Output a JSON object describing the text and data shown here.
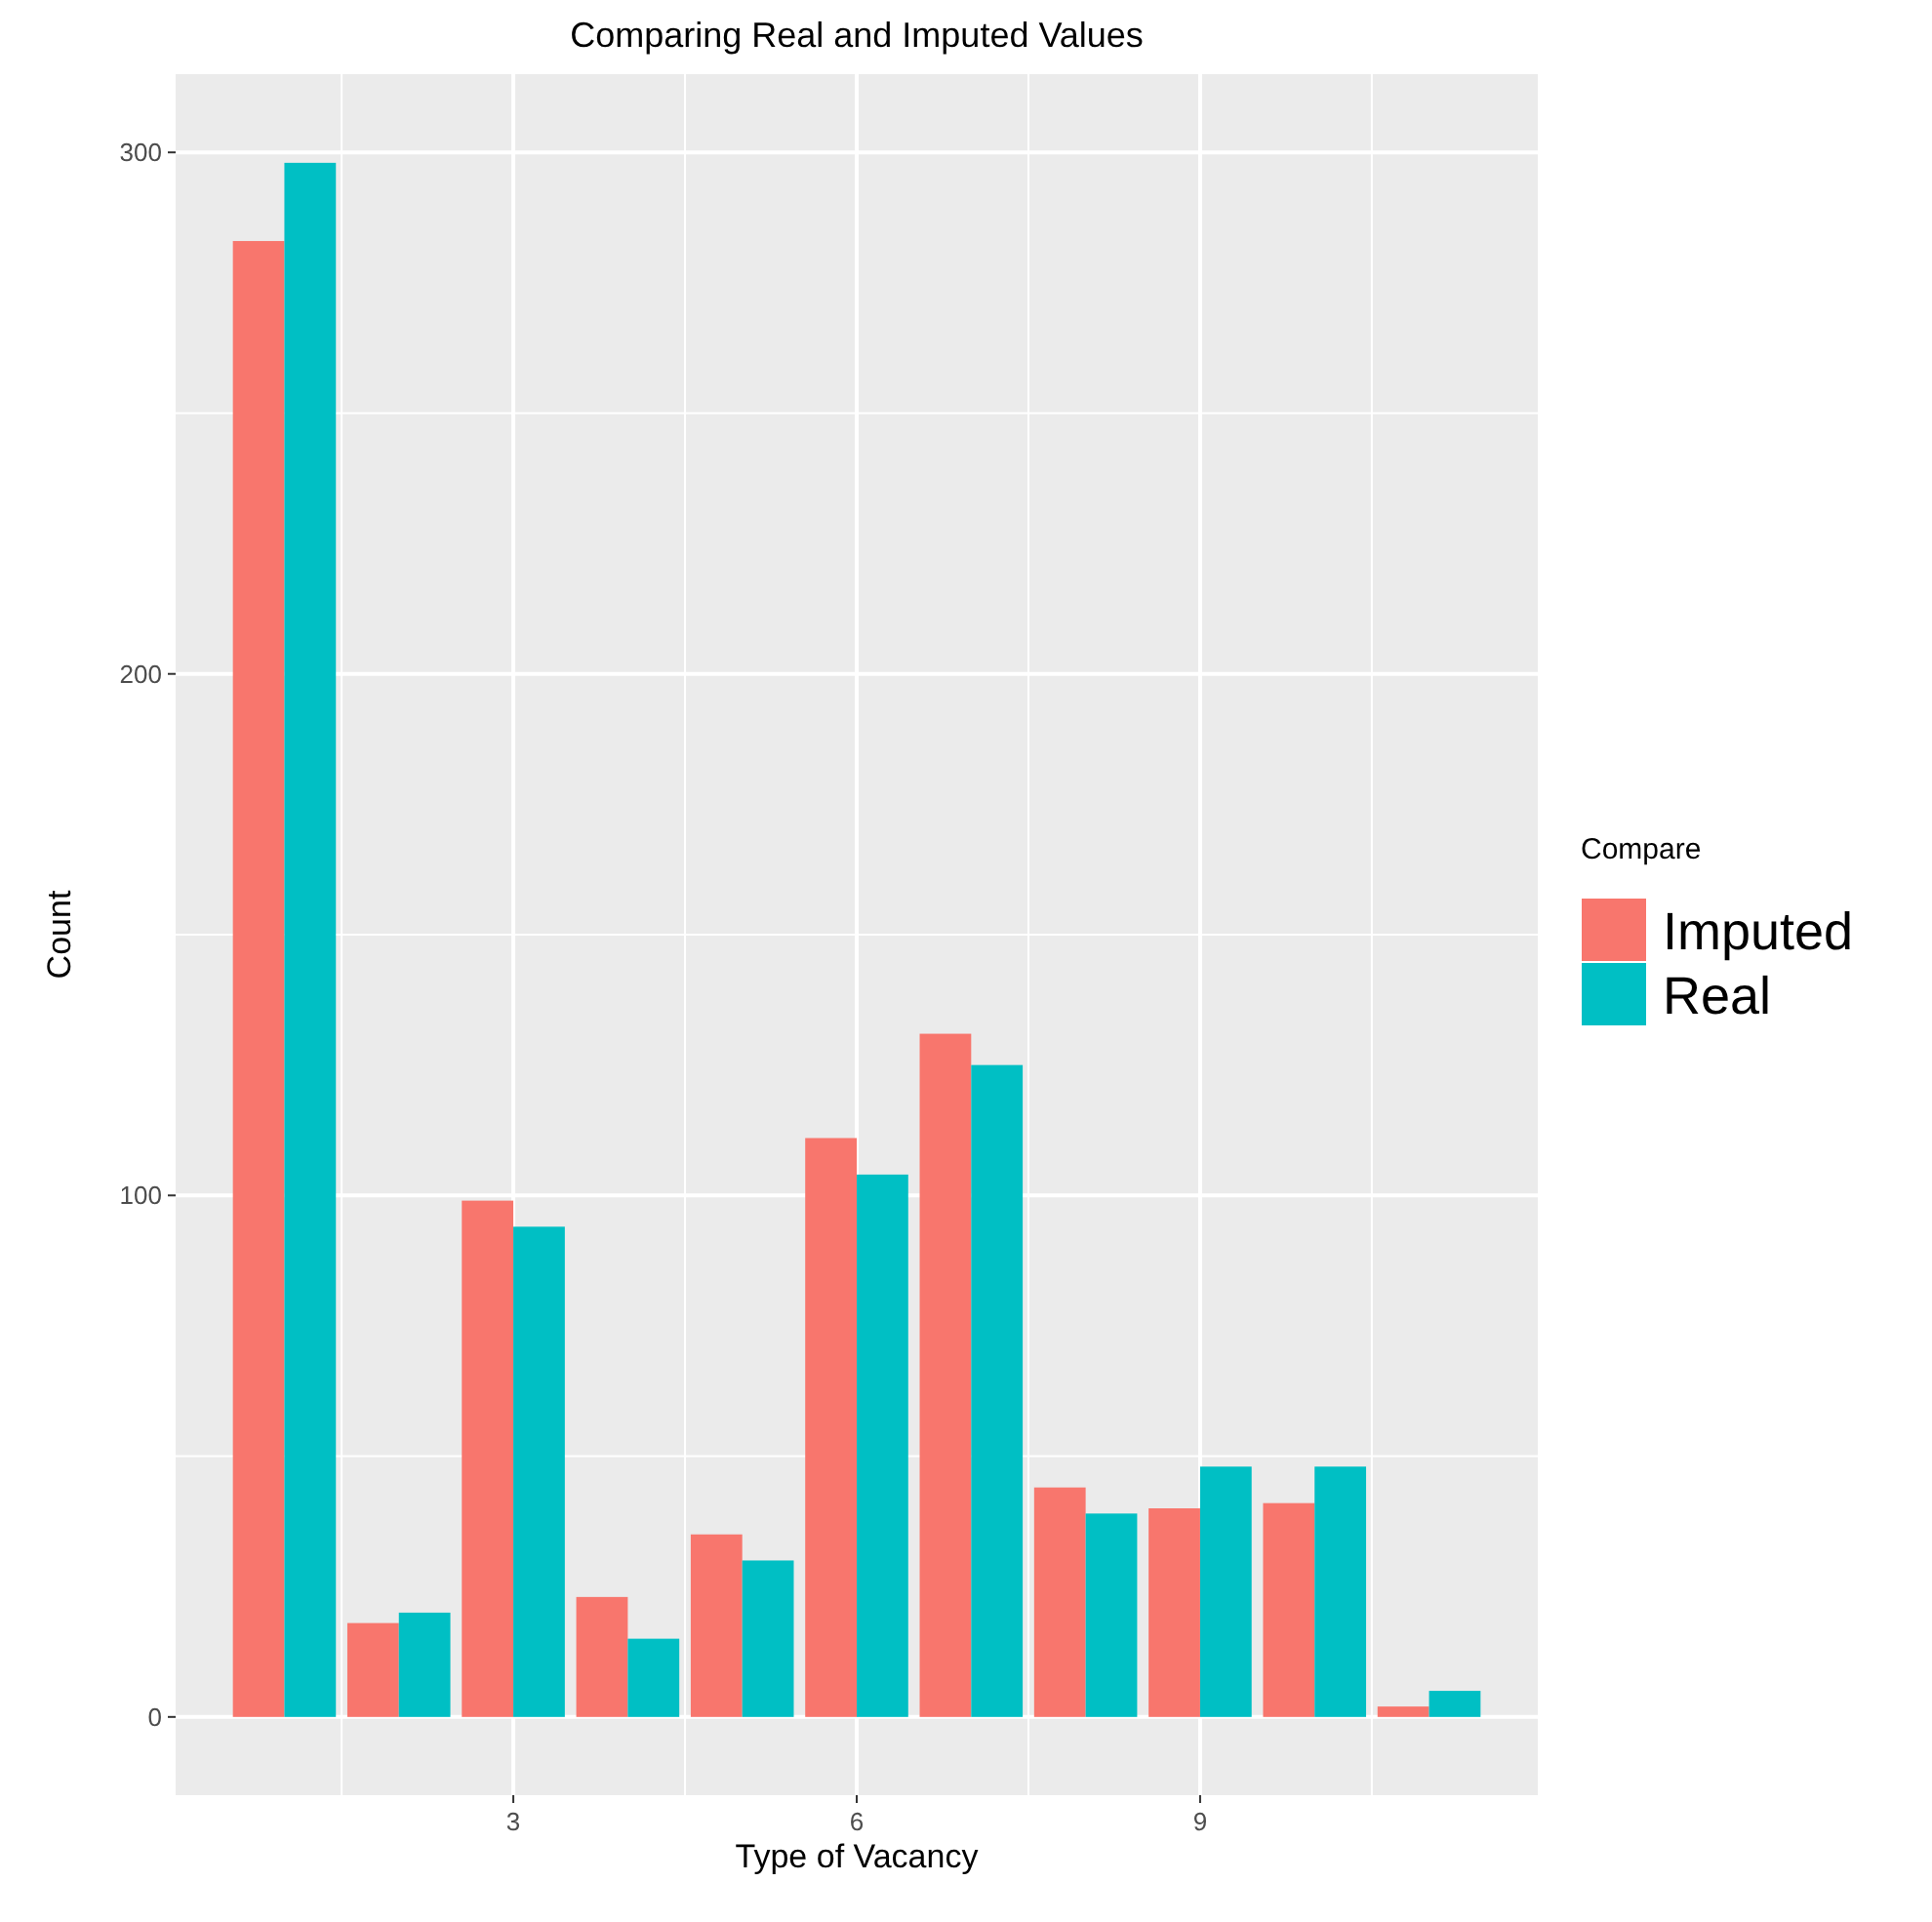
{
  "chart_data": {
    "type": "bar",
    "title": "Comparing Real and Imputed Values",
    "xlabel": "Type of Vacancy",
    "ylabel": "Count",
    "legend_title": "Compare",
    "x": [
      1,
      2,
      3,
      4,
      5,
      6,
      7,
      8,
      9,
      10,
      11
    ],
    "series": [
      {
        "name": "Imputed",
        "color": "#f8766d",
        "values": [
          283,
          18,
          99,
          23,
          35,
          111,
          131,
          44,
          40,
          41,
          2
        ]
      },
      {
        "name": "Real",
        "color": "#00bfc4",
        "values": [
          298,
          20,
          94,
          15,
          30,
          104,
          125,
          39,
          48,
          48,
          5
        ]
      }
    ],
    "xlim": [
      0.05,
      11.95
    ],
    "xticks": [
      3,
      6,
      9
    ],
    "ylim": [
      -15,
      315
    ],
    "yticks": [
      0,
      100,
      200,
      300
    ],
    "grid": true,
    "legend": "right"
  }
}
